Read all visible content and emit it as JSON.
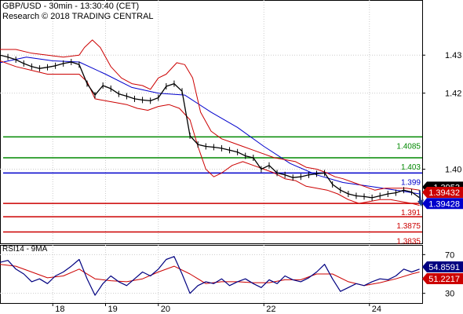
{
  "header": {
    "title": "GBP/USD - 30min - 13:30:40 (CET)",
    "subtitle": "Research © 2018 TRADING CENTRAL"
  },
  "colors": {
    "price": "#000000",
    "bollinger": "#cc0000",
    "moving_average": "#0000cc",
    "support": "#cc0000",
    "resistance": "#008800",
    "pivot": "#0000cc",
    "rsi": "#000080",
    "rsi_ma": "#cc0000",
    "grid": "#cccccc",
    "last_price_badge": "#000000",
    "bid_badge": "#cc0000",
    "ask_badge": "#0000cc",
    "arrow": "#1a3a8a"
  },
  "chart_data": [
    {
      "type": "line",
      "panel": "price",
      "title": "GBP/USD - 30min - 13:30:40 (CET)",
      "ylim": [
        1.3805,
        1.4445
      ],
      "yticks": [
        1.43,
        1.42,
        1.4
      ],
      "xlim": [
        17.0,
        25.0
      ],
      "xticks": [
        {
          "x": 18,
          "label": "18"
        },
        {
          "x": 19,
          "label": "19"
        },
        {
          "x": 20,
          "label": "20"
        },
        {
          "x": 22,
          "label": "22"
        },
        {
          "x": 24,
          "label": "24"
        }
      ],
      "grid": true,
      "series": [
        {
          "kind": "price",
          "x": [
            17.0,
            17.15,
            17.3,
            17.45,
            17.6,
            17.75,
            17.9,
            18.05,
            18.2,
            18.35,
            18.5,
            18.65,
            18.8,
            18.95,
            19.1,
            19.25,
            19.4,
            19.55,
            19.7,
            19.85,
            20.0,
            20.15,
            20.3,
            20.45,
            20.6,
            20.75,
            20.9,
            21.05,
            21.2,
            21.35,
            21.5,
            21.65,
            21.8,
            21.95,
            22.1,
            22.25,
            22.4,
            22.55,
            22.7,
            22.85,
            23.0,
            23.15,
            23.3,
            23.45,
            23.6,
            23.75,
            23.9,
            24.05,
            24.2,
            24.35,
            24.5,
            24.65,
            24.8,
            24.95
          ],
          "y": [
            1.43,
            1.4295,
            1.4288,
            1.4278,
            1.427,
            1.4265,
            1.4268,
            1.4272,
            1.4278,
            1.4282,
            1.4275,
            1.4225,
            1.4195,
            1.422,
            1.4212,
            1.4198,
            1.4192,
            1.4185,
            1.4182,
            1.418,
            1.4188,
            1.4218,
            1.4225,
            1.4205,
            1.4088,
            1.4065,
            1.406,
            1.4058,
            1.4055,
            1.405,
            1.4045,
            1.4035,
            1.403,
            1.4,
            1.401,
            1.399,
            1.3985,
            1.3978,
            1.398,
            1.3985,
            1.3988,
            1.399,
            1.396,
            1.3945,
            1.3935,
            1.393,
            1.3928,
            1.3925,
            1.393,
            1.3935,
            1.3938,
            1.3945,
            1.394,
            1.3925
          ]
        },
        {
          "kind": "moving_average",
          "x": [
            17.0,
            17.5,
            18.0,
            18.5,
            19.0,
            19.5,
            20.0,
            20.5,
            21.0,
            21.5,
            22.0,
            22.5,
            23.0,
            23.5,
            24.0,
            24.5,
            24.95
          ],
          "y": [
            1.428,
            1.4295,
            1.4285,
            1.4282,
            1.425,
            1.4215,
            1.42,
            1.4195,
            1.415,
            1.411,
            1.406,
            1.4015,
            1.3985,
            1.3965,
            1.3955,
            1.3945,
            1.3935
          ]
        },
        {
          "kind": "bollinger_upper",
          "x": [
            17.0,
            17.3,
            17.6,
            17.9,
            18.2,
            18.5,
            18.6,
            18.75,
            18.9,
            19.1,
            19.3,
            19.5,
            19.7,
            19.85,
            20.0,
            20.15,
            20.35,
            20.5,
            20.65,
            20.8,
            21.0,
            21.2,
            21.4,
            21.6,
            21.8,
            22.0,
            22.2,
            22.4,
            22.6,
            22.8,
            23.0,
            23.2,
            23.35,
            23.5,
            23.7,
            23.9,
            24.1,
            24.3,
            24.5,
            24.7,
            24.95
          ],
          "y": [
            1.4315,
            1.4315,
            1.4305,
            1.43,
            1.4295,
            1.43,
            1.432,
            1.434,
            1.432,
            1.427,
            1.424,
            1.4225,
            1.422,
            1.421,
            1.424,
            1.425,
            1.428,
            1.4275,
            1.424,
            1.415,
            1.41,
            1.408,
            1.407,
            1.406,
            1.405,
            1.404,
            1.403,
            1.4025,
            1.402,
            1.4005,
            1.4,
            1.399,
            1.398,
            1.3975,
            1.3965,
            1.3955,
            1.3945,
            1.395,
            1.395,
            1.395,
            1.3945
          ]
        },
        {
          "kind": "bollinger_lower",
          "x": [
            17.0,
            17.3,
            17.6,
            17.9,
            18.2,
            18.5,
            18.65,
            18.8,
            19.0,
            19.2,
            19.4,
            19.6,
            19.8,
            20.0,
            20.2,
            20.4,
            20.6,
            20.75,
            20.9,
            21.05,
            21.2,
            21.4,
            21.6,
            21.8,
            22.0,
            22.2,
            22.4,
            22.6,
            22.8,
            23.0,
            23.2,
            23.4,
            23.6,
            23.8,
            24.0,
            24.2,
            24.4,
            24.6,
            24.8,
            24.95
          ],
          "y": [
            1.4285,
            1.427,
            1.426,
            1.425,
            1.425,
            1.425,
            1.423,
            1.4185,
            1.418,
            1.4175,
            1.417,
            1.416,
            1.4155,
            1.4165,
            1.417,
            1.416,
            1.413,
            1.406,
            1.4,
            1.398,
            1.399,
            1.401,
            1.402,
            1.401,
            1.4,
            1.399,
            1.3975,
            1.397,
            1.3955,
            1.395,
            1.3945,
            1.3935,
            1.392,
            1.391,
            1.3915,
            1.392,
            1.392,
            1.3915,
            1.391,
            1.3905
          ]
        }
      ],
      "levels": [
        {
          "value": 1.4085,
          "label": "1.4085",
          "kind": "resistance"
        },
        {
          "value": 1.403,
          "label": "1.403",
          "kind": "resistance"
        },
        {
          "value": 1.399,
          "label": "1.399",
          "kind": "pivot"
        },
        {
          "value": 1.391,
          "label": "1.391",
          "kind": "support"
        },
        {
          "value": 1.3875,
          "label": "1.3875",
          "kind": "support"
        },
        {
          "value": 1.3835,
          "label": "1.3835",
          "kind": "support"
        }
      ],
      "badges": [
        {
          "value": 1.3953,
          "label": "1.3953",
          "kind": "last_price"
        },
        {
          "value": 1.39432,
          "label": "1.39432",
          "kind": "bid"
        },
        {
          "value": 1.39428,
          "label": "1.39428",
          "kind": "ask"
        }
      ],
      "arrow": {
        "direction": "down",
        "from": {
          "x": 24.95,
          "y": 1.3945
        },
        "to": {
          "x": 25.0,
          "y": 1.391
        }
      }
    },
    {
      "type": "line",
      "panel": "rsi",
      "title": "RSI14 - 9MA",
      "ylim": [
        20,
        80
      ],
      "yticks": [
        70,
        30
      ],
      "xlim": [
        17.0,
        25.0
      ],
      "grid": true,
      "series": [
        {
          "kind": "rsi",
          "x": [
            17.0,
            17.15,
            17.3,
            17.45,
            17.6,
            17.75,
            17.9,
            18.05,
            18.2,
            18.35,
            18.5,
            18.65,
            18.8,
            18.95,
            19.1,
            19.25,
            19.4,
            19.55,
            19.7,
            19.85,
            20.0,
            20.15,
            20.3,
            20.45,
            20.6,
            20.75,
            20.9,
            21.05,
            21.2,
            21.35,
            21.5,
            21.65,
            21.8,
            21.95,
            22.1,
            22.25,
            22.4,
            22.55,
            22.7,
            22.85,
            23.0,
            23.15,
            23.3,
            23.45,
            23.6,
            23.75,
            23.9,
            24.05,
            24.2,
            24.35,
            24.5,
            24.65,
            24.8,
            24.95
          ],
          "y": [
            62,
            64,
            55,
            50,
            42,
            45,
            40,
            48,
            52,
            58,
            65,
            45,
            28,
            40,
            48,
            42,
            38,
            45,
            52,
            48,
            55,
            65,
            68,
            50,
            30,
            38,
            42,
            40,
            45,
            38,
            42,
            45,
            40,
            36,
            44,
            40,
            48,
            44,
            42,
            46,
            52,
            60,
            45,
            32,
            36,
            40,
            38,
            42,
            45,
            44,
            48,
            55,
            52,
            55
          ]
        },
        {
          "kind": "rsi_ma",
          "x": [
            17.0,
            17.3,
            17.6,
            17.9,
            18.2,
            18.5,
            18.8,
            19.1,
            19.4,
            19.7,
            20.0,
            20.3,
            20.6,
            20.9,
            21.2,
            21.5,
            21.8,
            22.1,
            22.4,
            22.7,
            23.0,
            23.3,
            23.6,
            23.9,
            24.2,
            24.5,
            24.8,
            24.95
          ],
          "y": [
            60,
            58,
            52,
            46,
            48,
            55,
            45,
            43,
            42,
            45,
            52,
            58,
            50,
            40,
            42,
            42,
            41,
            41,
            44,
            44,
            50,
            50,
            42,
            38,
            41,
            45,
            50,
            52
          ]
        }
      ],
      "badges": [
        {
          "value": 54.8591,
          "label": "54.8591",
          "kind": "rsi"
        },
        {
          "value": 51.2217,
          "label": "51.2217",
          "kind": "rsi_ma"
        }
      ]
    }
  ]
}
